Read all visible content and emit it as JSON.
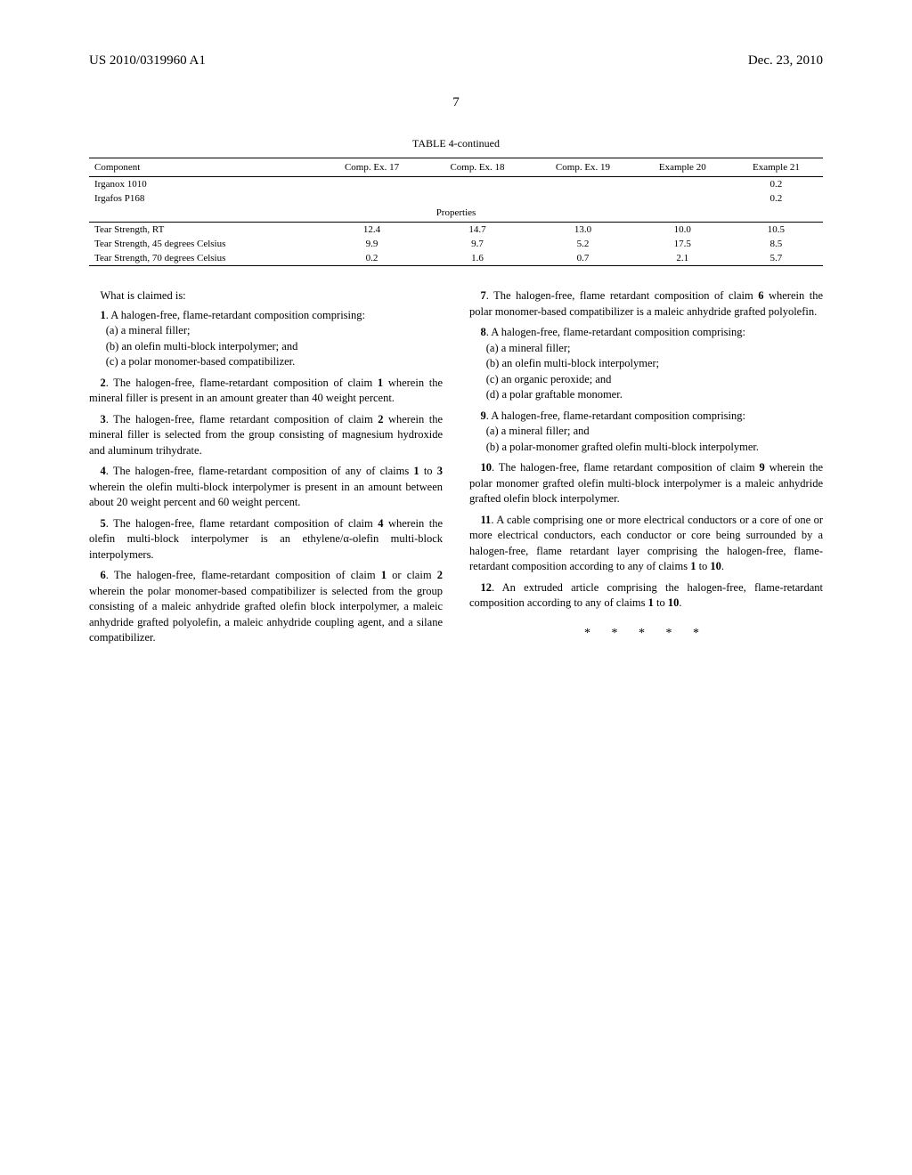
{
  "header": {
    "left": "US 2010/0319960 A1",
    "right": "Dec. 23, 2010"
  },
  "page_number": "7",
  "table": {
    "title": "TABLE 4-continued",
    "columns": [
      "Component",
      "Comp. Ex. 17",
      "Comp. Ex. 18",
      "Comp. Ex. 19",
      "Example 20",
      "Example 21"
    ],
    "top_rows": [
      {
        "label": "Irganox 1010",
        "vals": [
          "",
          "",
          "",
          "",
          "0.2"
        ]
      },
      {
        "label": "Irgafos P168",
        "vals": [
          "",
          "",
          "",
          "",
          "0.2"
        ]
      }
    ],
    "section_label": "Properties",
    "rows": [
      {
        "label": "Tear Strength, RT",
        "vals": [
          "12.4",
          "14.7",
          "13.0",
          "10.0",
          "10.5"
        ]
      },
      {
        "label": "Tear Strength, 45 degrees Celsius",
        "vals": [
          "9.9",
          "9.7",
          "5.2",
          "17.5",
          "8.5"
        ]
      },
      {
        "label": "Tear Strength, 70 degrees Celsius",
        "vals": [
          "0.2",
          "1.6",
          "0.7",
          "2.1",
          "5.7"
        ]
      }
    ]
  },
  "claims": {
    "intro": "What is claimed is:",
    "c1": {
      "num": "1",
      "text": ". A halogen-free, flame-retardant composition comprising:",
      "subs": [
        "(a) a mineral filler;",
        "(b) an olefin multi-block interpolymer; and",
        "(c) a polar monomer-based compatibilizer."
      ]
    },
    "c2": {
      "num": "2",
      "bold_ref": "1",
      "text_before": ". The halogen-free, flame-retardant composition of claim ",
      "text_after": " wherein the mineral filler is present in an amount greater than 40 weight percent."
    },
    "c3": {
      "num": "3",
      "bold_ref": "2",
      "text_before": ". The halogen-free, flame retardant composition of claim ",
      "text_after": " wherein the mineral filler is selected from the group consisting of magnesium hydroxide and aluminum trihydrate."
    },
    "c4": {
      "num": "4",
      "bold_refs": [
        "1",
        "3"
      ],
      "text_before": ". The halogen-free, flame-retardant composition of any of claims ",
      "text_mid": " to ",
      "text_after": " wherein the olefin multi-block interpolymer is present in an amount between about 20 weight percent and 60 weight percent."
    },
    "c5": {
      "num": "5",
      "bold_ref": "4",
      "text_before": ". The halogen-free, flame retardant composition of claim ",
      "text_after": " wherein the olefin multi-block interpolymer is an ethylene/α-olefin multi-block interpolymers."
    },
    "c6": {
      "num": "6",
      "bold_refs": [
        "1",
        "2"
      ],
      "text_before": ". The halogen-free, flame-retardant composition of claim ",
      "text_mid": " or claim ",
      "text_after": " wherein the polar monomer-based compatibilizer is selected from the group consisting of a maleic anhydride grafted olefin block interpolymer, a maleic anhydride grafted polyolefin, a maleic anhydride coupling agent, and a silane compatibilizer."
    },
    "c7": {
      "num": "7",
      "bold_ref": "6",
      "text_before": ". The halogen-free, flame retardant composition of claim ",
      "text_after": " wherein the polar monomer-based compatibilizer is a maleic anhydride grafted polyolefin."
    },
    "c8": {
      "num": "8",
      "text": ". A halogen-free, flame-retardant composition comprising:",
      "subs": [
        "(a) a mineral filler;",
        "(b) an olefin multi-block interpolymer;",
        "(c) an organic peroxide; and",
        "(d) a polar graftable monomer."
      ]
    },
    "c9": {
      "num": "9",
      "text": ". A halogen-free, flame-retardant composition comprising:",
      "subs": [
        "(a) a mineral filler; and",
        "(b) a polar-monomer grafted olefin multi-block interpolymer."
      ]
    },
    "c10": {
      "num": "10",
      "bold_ref": "9",
      "text_before": ". The halogen-free, flame retardant composition of claim ",
      "text_after": " wherein the polar monomer grafted olefin multi-block interpolymer is a maleic anhydride grafted olefin block interpolymer."
    },
    "c11": {
      "num": "11",
      "bold_refs": [
        "1",
        "10"
      ],
      "text_before": ". A cable comprising one or more electrical conductors or a core of one or more electrical conductors, each conductor or core being surrounded by a halogen-free, flame retardant layer comprising the halogen-free, flame-retardant composition according to any of claims ",
      "text_mid": " to ",
      "text_after": "."
    },
    "c12": {
      "num": "12",
      "bold_refs": [
        "1",
        "10"
      ],
      "text_before": ". An extruded article comprising the halogen-free, flame-retardant composition according to any of claims ",
      "text_mid": " to ",
      "text_after": "."
    }
  },
  "end_marks": "* * * * *"
}
